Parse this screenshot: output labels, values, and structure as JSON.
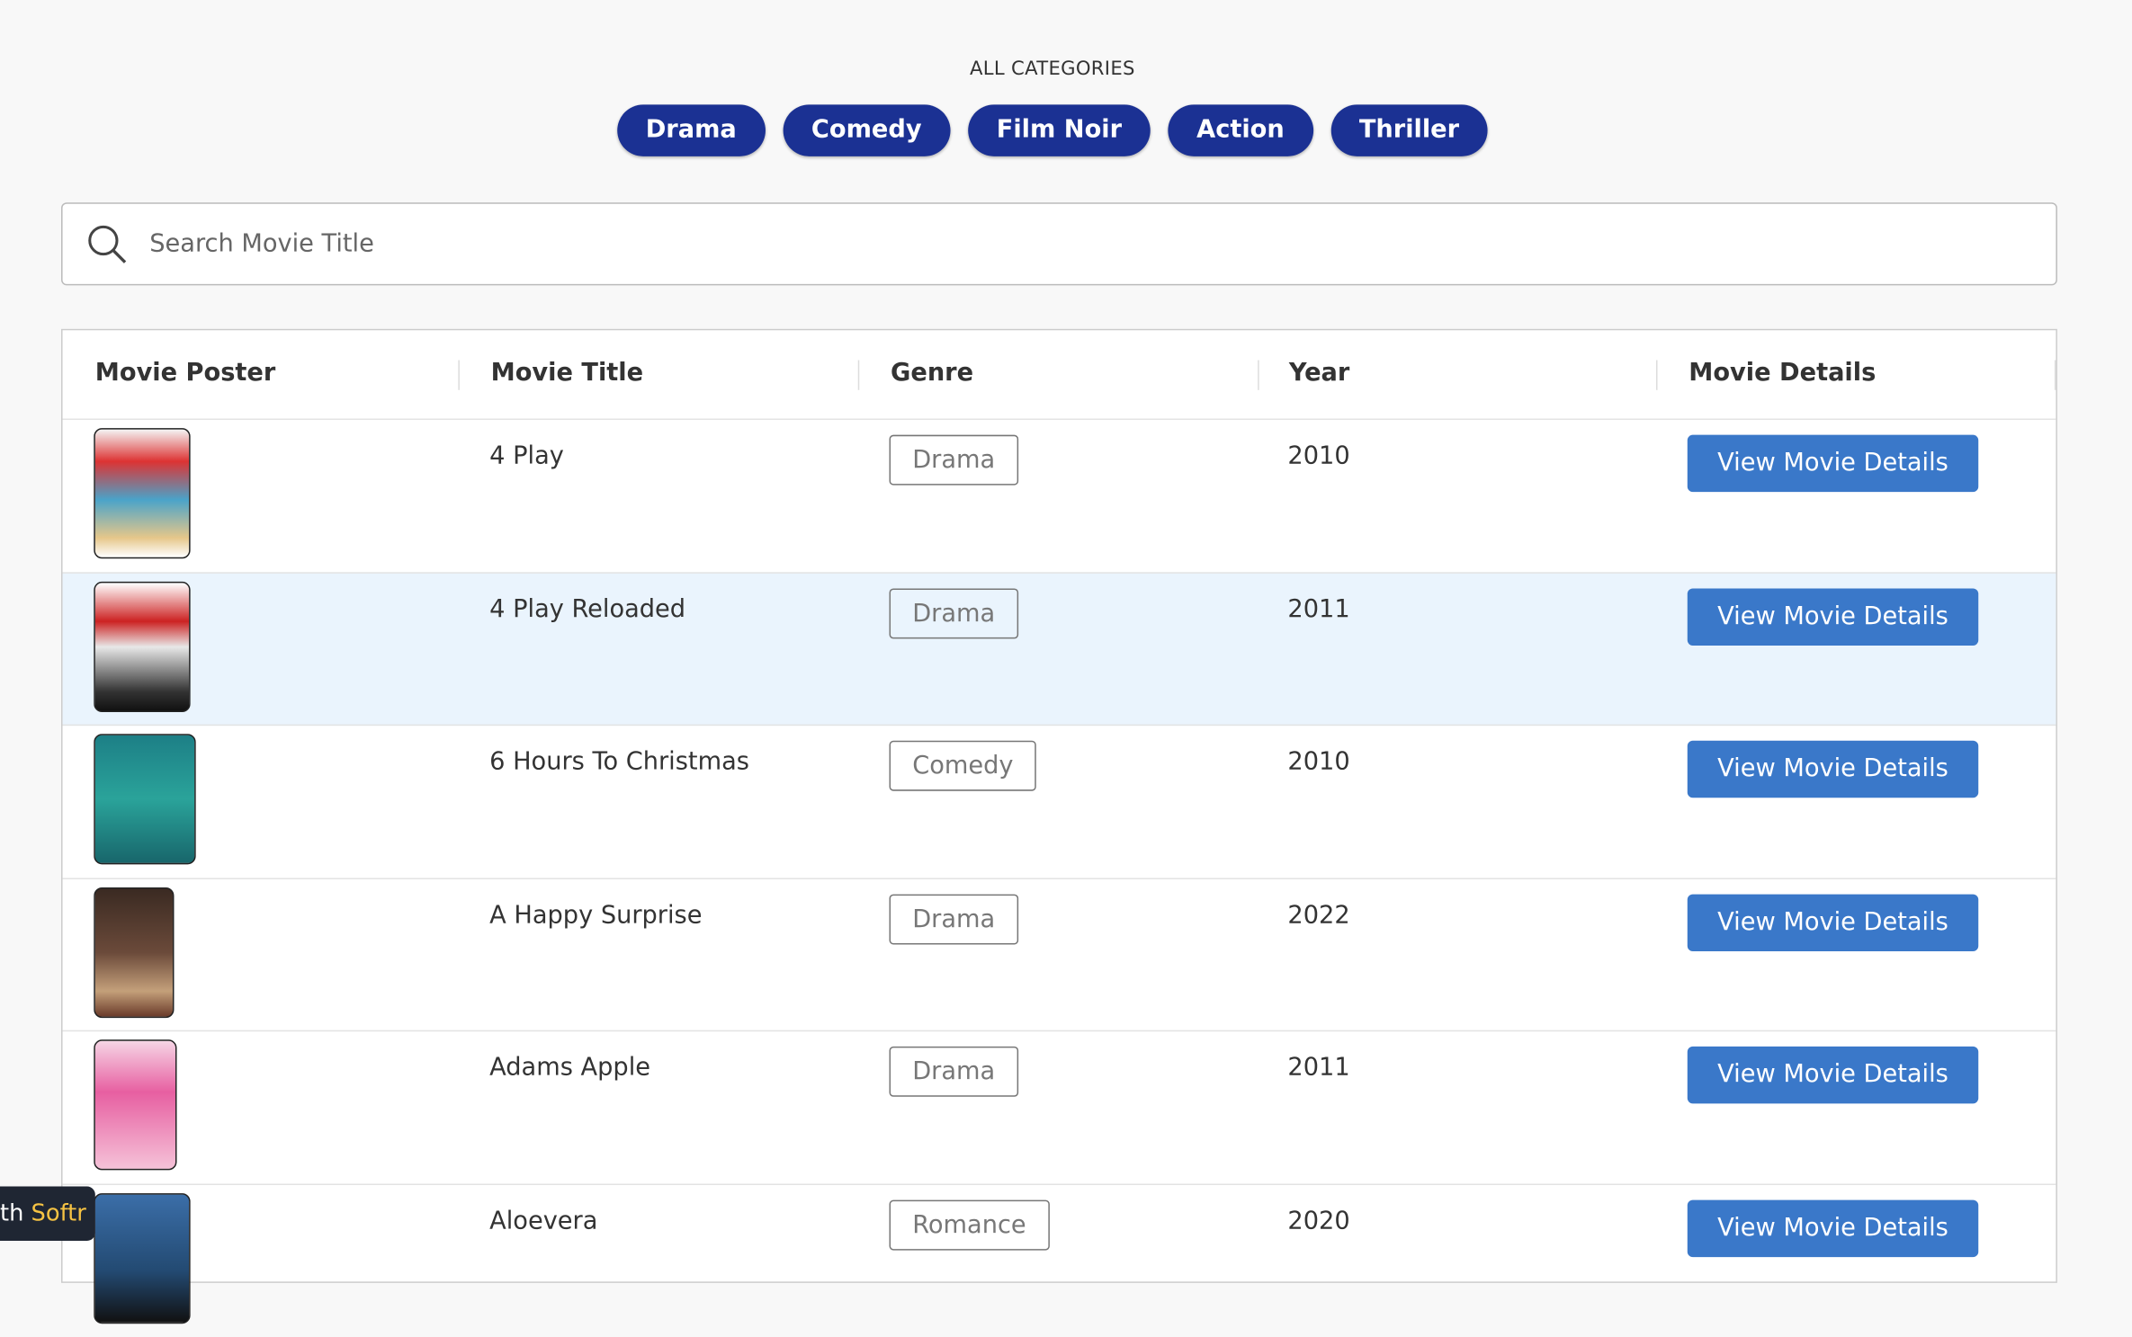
{
  "header": {
    "title": "ALL CATEGORIES",
    "categories": [
      "Drama",
      "Comedy",
      "Film Noir",
      "Action",
      "Thriller"
    ]
  },
  "search": {
    "placeholder": "Search Movie Title"
  },
  "table": {
    "columns": [
      "Movie Poster",
      "Movie Title",
      "Genre",
      "Year",
      "Movie Details"
    ],
    "button_label": "View Movie Details",
    "rows": [
      {
        "title": "4 Play",
        "genre": "Drama",
        "year": 2010
      },
      {
        "title": "4 Play Reloaded",
        "genre": "Drama",
        "year": 2011
      },
      {
        "title": "6 Hours To Christmas",
        "genre": "Comedy",
        "year": 2010
      },
      {
        "title": "A Happy Surprise",
        "genre": "Drama",
        "year": 2022
      },
      {
        "title": "Adams Apple",
        "genre": "Drama",
        "year": 2011
      },
      {
        "title": "Aloevera",
        "genre": "Romance",
        "year": 2020
      }
    ]
  },
  "badge": {
    "prefix": "th",
    "brand": "Softr"
  }
}
